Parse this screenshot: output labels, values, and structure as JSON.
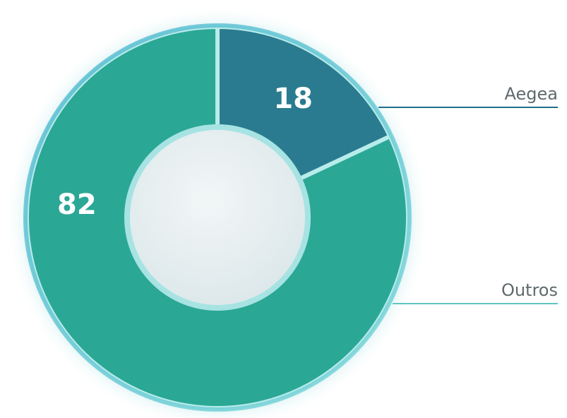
{
  "chart_data": {
    "type": "donut",
    "categories": [
      "Aegea",
      "Outros"
    ],
    "values": [
      18,
      82
    ],
    "data_labels": [
      "18",
      "82"
    ],
    "legend": [
      "Aegea",
      "Outros"
    ],
    "colors": [
      "#2a7b8f",
      "#2ba796"
    ],
    "legend_line_colors": [
      "#1f6e8e",
      "#5ec6bf"
    ],
    "title": "",
    "legend_placement": "right"
  }
}
